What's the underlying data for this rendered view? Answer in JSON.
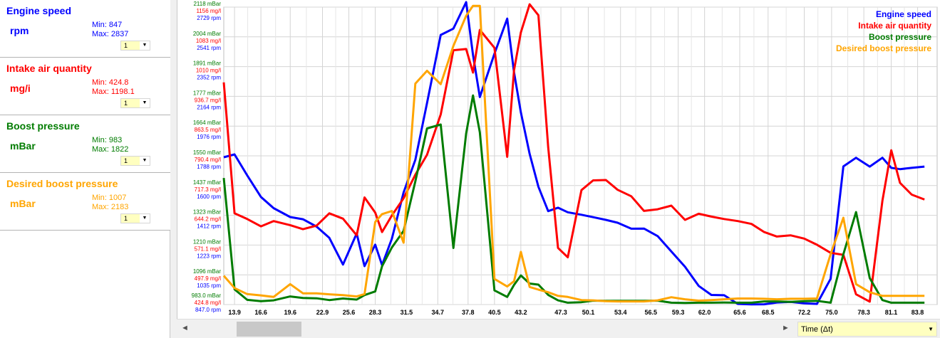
{
  "panels": [
    {
      "title": "Engine speed",
      "unit": "rpm",
      "min": "Min: 847",
      "max": "Max: 2837",
      "color": "#0000ff",
      "select": "1"
    },
    {
      "title": "Intake air quantity",
      "unit": "mg/i",
      "min": "Min: 424.8",
      "max": "Max: 1198.1",
      "color": "#ff0000",
      "select": "1"
    },
    {
      "title": "Boost pressure",
      "unit": "mBar",
      "min": "Min: 983",
      "max": "Max: 1822",
      "color": "#007c00",
      "select": "1"
    },
    {
      "title": "Desired boost pressure",
      "unit": "mBar",
      "min": "Min: 1007",
      "max": "Max: 2183",
      "color": "#ffa500",
      "select": "1"
    }
  ],
  "bottom": {
    "left_arrow": "◄",
    "right_arrow": "►",
    "time_select": "Time (Δt)",
    "time_drop": "▼"
  },
  "chart_data": {
    "type": "line",
    "xlabel": "Time (Δt)",
    "x": [
      12.8,
      13.9,
      15.2,
      16.6,
      17.9,
      19.6,
      20.9,
      22.3,
      23.6,
      25.0,
      26.4,
      27.2,
      28.3,
      29.0,
      30.0,
      31.2,
      32.4,
      33.6,
      35.0,
      36.3,
      37.6,
      38.3,
      39.0,
      40.5,
      41.8,
      42.5,
      43.2,
      44.1,
      45.0,
      46.0,
      47.0,
      48.0,
      49.4,
      50.6,
      51.9,
      53.1,
      54.5,
      55.8,
      57.2,
      58.6,
      60.0,
      61.4,
      62.7,
      64.0,
      65.4,
      66.8,
      68.1,
      69.4,
      70.8,
      72.2,
      73.5,
      74.9,
      76.2,
      77.5,
      78.9,
      80.2,
      81.1,
      82.0,
      83.2,
      84.5
    ],
    "xticks": [
      "13.9",
      "16.6",
      "19.6",
      "22.9",
      "25.6",
      "28.3",
      "31.5",
      "34.7",
      "37.8",
      "40.5",
      "43.2",
      "47.3",
      "50.1",
      "53.4",
      "56.5",
      "59.3",
      "62.0",
      "65.6",
      "68.5",
      "72.2",
      "75.0",
      "78.3",
      "81.1",
      "83.8"
    ],
    "axis_labels": [
      [
        "2118 mBar",
        "1156 mg/l",
        "2729 rpm"
      ],
      [
        "2004 mBar",
        "1083 mg/l",
        "2541 rpm"
      ],
      [
        "1891 mBar",
        "1010 mg/l",
        "2352 rpm"
      ],
      [
        "1777 mBar",
        "936.7 mg/l",
        "2164 rpm"
      ],
      [
        "1664 mBar",
        "863.5 mg/l",
        "1976 rpm"
      ],
      [
        "1550 mBar",
        "790.4 mg/l",
        "1788 rpm"
      ],
      [
        "1437 mBar",
        "717.3 mg/l",
        "1600 rpm"
      ],
      [
        "1323 mBar",
        "644.2 mg/l",
        "1412 rpm"
      ],
      [
        "1210 mBar",
        "571.1 mg/l",
        "1223 rpm"
      ],
      [
        "1096 mBar",
        "497.9 mg/l",
        "1035 rpm"
      ],
      [
        "983.0 mBar",
        "424.8 mg/l",
        "847.0 rpm"
      ]
    ],
    "legend": [
      "Engine speed",
      "Intake air quantity",
      "Boost pressure",
      "Desired boost pressure"
    ],
    "legend_position": "top-right",
    "grid": true,
    "series": [
      {
        "name": "Engine speed",
        "color": "#0000ff",
        "ylim": [
          847.0,
          2729
        ],
        "values": [
          1779,
          1797,
          1664,
          1528,
          1457,
          1401,
          1387,
          1340,
          1269,
          1100,
          1297,
          1090,
          1226,
          1097,
          1264,
          1556,
          1763,
          2122,
          2553,
          2593,
          2840,
          2427,
          2160,
          2434,
          2656,
          2316,
          2062,
          1800,
          1592,
          1438,
          1460,
          1431,
          1415,
          1400,
          1383,
          1365,
          1327,
          1328,
          1280,
          1183,
          1086,
          965,
          908,
          906,
          851,
          848,
          849,
          860,
          864,
          855,
          851,
          1010,
          1721,
          1776,
          1720,
          1776,
          1712,
          1704,
          1712,
          1720
        ]
      },
      {
        "name": "Intake air quantity",
        "color": "#ff0000",
        "ylim": [
          424.8,
          1156
        ],
        "values": [
          971,
          649,
          635,
          617,
          630,
          620,
          610,
          619,
          649,
          636,
          595,
          688,
          651,
          603,
          644,
          686,
          744,
          793,
          892,
          1050,
          1053,
          995,
          1100,
          1056,
          788,
          1001,
          1094,
          1163,
          1136,
          812,
          564,
          541,
          706,
          730,
          731,
          707,
          691,
          655,
          659,
          668,
          633,
          648,
          641,
          635,
          630,
          623,
          603,
          592,
          595,
          587,
          572,
          552,
          547,
          450,
          432,
          680,
          804,
          724,
          695,
          683
        ]
      },
      {
        "name": "Boost pressure",
        "color": "#007c00",
        "ylim": [
          983.0,
          2118
        ],
        "values": [
          1466,
          1041,
          1001,
          996,
          999,
          1014,
          1008,
          1007,
          1000,
          1006,
          1002,
          1019,
          1033,
          1129,
          1201,
          1264,
          1453,
          1655,
          1670,
          1199,
          1636,
          1781,
          1640,
          1037,
          1012,
          1058,
          1094,
          1063,
          1059,
          1020,
          999,
          990,
          992,
          998,
          997,
          997,
          997,
          997,
          998,
          990,
          989,
          990,
          990,
          991,
          990,
          990,
          995,
          995,
          993,
          996,
          997,
          990,
          1175,
          1336,
          1084,
          1000,
          990,
          990,
          990,
          990
        ]
      },
      {
        "name": "Desired boost pressure",
        "color": "#ffa500",
        "ylim": [
          983.0,
          2118
        ],
        "values": [
          1093,
          1046,
          1023,
          1018,
          1012,
          1061,
          1026,
          1026,
          1022,
          1019,
          1014,
          1023,
          1298,
          1328,
          1340,
          1219,
          1826,
          1875,
          1824,
          1970,
          2085,
          2123,
          2123,
          1081,
          1052,
          1072,
          1184,
          1050,
          1040,
          1030,
          1016,
          1012,
          1000,
          999,
          996,
          995,
          995,
          995,
          999,
          1011,
          1003,
          998,
          1000,
          1003,
          1006,
          1006,
          1005,
          1003,
          1005,
          1005,
          1006,
          1175,
          1314,
          1061,
          1030,
          1016,
          1016,
          1016,
          1016,
          1016
        ]
      }
    ]
  }
}
